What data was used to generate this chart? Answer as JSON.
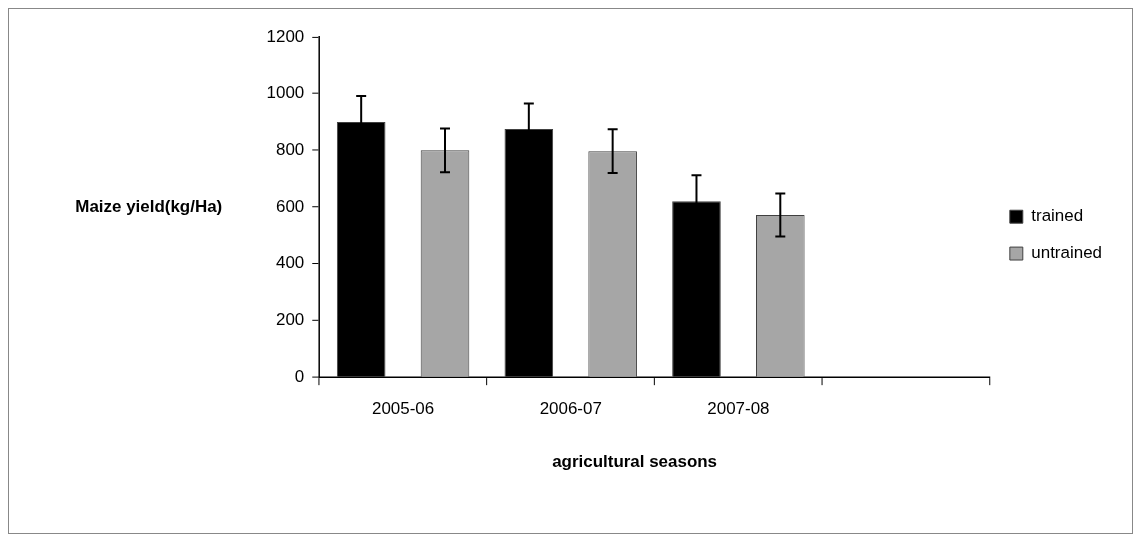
{
  "chart_data": {
    "type": "bar",
    "xlabel": "agricultural seasons",
    "ylabel": "Maize yield(kg/Ha)",
    "categories": [
      "2005-06",
      "2006-07",
      "2007-08",
      null
    ],
    "series": [
      {
        "name": "trained",
        "color": "#000000",
        "values": [
          900,
          875,
          620,
          null
        ],
        "errors": [
          92,
          90,
          92,
          null
        ]
      },
      {
        "name": "untrained",
        "color": "#a6a6a6",
        "values": [
          800,
          797,
          572,
          null
        ],
        "errors": [
          77,
          77,
          76,
          null
        ]
      }
    ],
    "ylim": [
      0,
      1200
    ],
    "yticks": [
      0,
      200,
      400,
      600,
      800,
      1000,
      1200
    ],
    "grid": false,
    "legend": "right"
  }
}
